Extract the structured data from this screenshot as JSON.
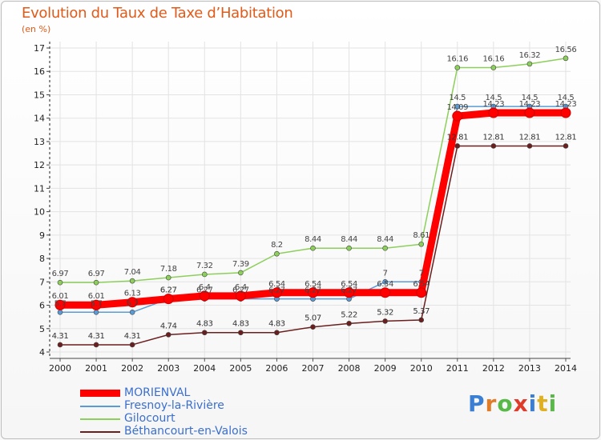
{
  "chart_data": {
    "type": "line",
    "title": "Evolution du Taux de Taxe d’Habitation",
    "subtitle": "(en %)",
    "x": [
      "2000",
      "2001",
      "2002",
      "2003",
      "2004",
      "2005",
      "2006",
      "2007",
      "2008",
      "2009",
      "2010",
      "2011",
      "2012",
      "2013",
      "2014"
    ],
    "ylim": [
      4,
      17
    ],
    "yticks": [
      4,
      5,
      6,
      7,
      8,
      9,
      10,
      11,
      12,
      13,
      14,
      15,
      16,
      17
    ],
    "grid": true,
    "legend_position": "bottom-left",
    "series": [
      {
        "name": "MORIENVAL",
        "color": "#ff0000",
        "values": [
          6.01,
          6.01,
          6.13,
          6.27,
          6.4,
          6.4,
          6.54,
          6.54,
          6.54,
          6.54,
          6.54,
          14.09,
          14.23,
          14.23,
          14.23
        ],
        "labels": [
          "6.01",
          "6.01",
          "6.13",
          "6.27",
          "6.4",
          "6.4",
          "6.54",
          "6.54",
          "6.54",
          "6.54",
          "6.54",
          "14.09",
          "14.23",
          "14.23",
          "14.23"
        ]
      },
      {
        "name": "Fresnoy-la-Rivière",
        "color": "#5b9bd5",
        "values": [
          5.7,
          5.7,
          5.7,
          6.27,
          6.27,
          6.27,
          6.27,
          6.27,
          6.27,
          7,
          7,
          14.5,
          14.5,
          14.5,
          14.5
        ],
        "labels": [
          "5.7",
          "5.7",
          "5.7",
          "6.27",
          "6.27",
          "6.27",
          "6.27",
          "6.27",
          "6.27",
          "7",
          "7",
          "14.5",
          "14.5",
          "14.5",
          "14.5"
        ]
      },
      {
        "name": "Gilocourt",
        "color": "#8ccf5a",
        "values": [
          6.97,
          6.97,
          7.04,
          7.18,
          7.32,
          7.39,
          8.2,
          8.44,
          8.44,
          8.44,
          8.61,
          16.16,
          16.16,
          16.32,
          16.56
        ],
        "labels": [
          "6.97",
          "6.97",
          "7.04",
          "7.18",
          "7.32",
          "7.39",
          "8.2",
          "8.44",
          "8.44",
          "8.44",
          "8.61",
          "16.16",
          "16.16",
          "16.32",
          "16.56"
        ]
      },
      {
        "name": "Béthancourt-en-Valois",
        "color": "#6b1e1e",
        "values": [
          4.31,
          4.31,
          4.31,
          4.74,
          4.83,
          4.83,
          4.83,
          5.07,
          5.22,
          5.32,
          5.37,
          12.81,
          12.81,
          12.81,
          12.81
        ],
        "labels": [
          "4.31",
          "4.31",
          "4.31",
          "4.74",
          "4.83",
          "4.83",
          "4.83",
          "5.07",
          "5.22",
          "5.32",
          "5.37",
          "12.81",
          "12.81",
          "12.81",
          "12.81"
        ]
      }
    ]
  },
  "logo": {
    "letters": [
      "P",
      "r",
      "o",
      "x",
      "i",
      "t",
      "i"
    ],
    "colors": [
      "#3b7fd4",
      "#e07b28",
      "#58b848",
      "#e03a2a",
      "#3b7fd4",
      "#e0b020",
      "#58b848"
    ]
  }
}
